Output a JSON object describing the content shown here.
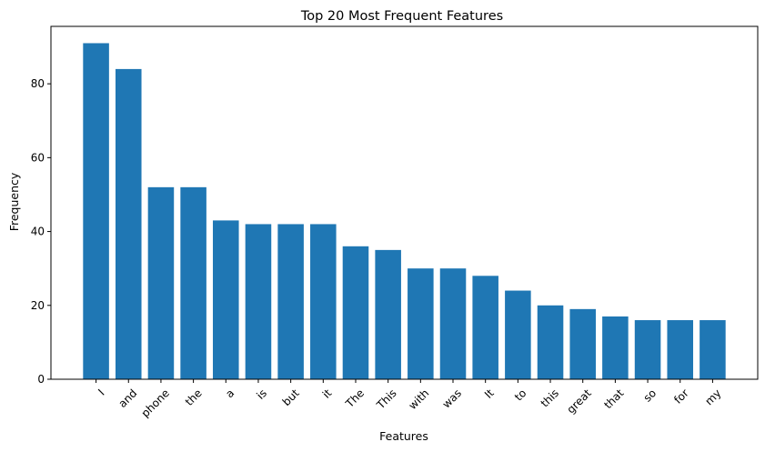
{
  "chart_data": {
    "type": "bar",
    "title": "Top 20 Most Frequent Features",
    "xlabel": "Features",
    "ylabel": "Frequency",
    "categories": [
      "I",
      "and",
      "phone",
      "the",
      "a",
      "is",
      "but",
      "it",
      "The",
      "This",
      "with",
      "was",
      "It",
      "to",
      "this",
      "great",
      "that",
      "so",
      "for",
      "my"
    ],
    "values": [
      91,
      84,
      52,
      52,
      43,
      42,
      42,
      42,
      36,
      35,
      30,
      30,
      28,
      24,
      20,
      19,
      17,
      16,
      16,
      16
    ],
    "ylim": [
      0,
      95.55
    ],
    "yticks": [
      0,
      20,
      40,
      60,
      80
    ],
    "bar_color": "#1f77b4",
    "grid": false,
    "x_tick_rotation": 45
  }
}
